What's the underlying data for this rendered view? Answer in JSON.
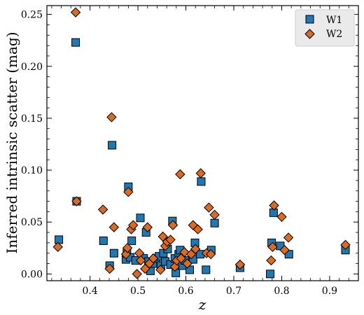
{
  "chart_data": {
    "type": "scatter",
    "xlabel": "z",
    "ylabel": "Inferred intrinsic scatter (mag)",
    "xlim": [
      0.31,
      0.96
    ],
    "ylim": [
      -0.0065,
      0.2585
    ],
    "x_ticks": [
      0.4,
      0.5,
      0.6,
      0.7,
      0.8,
      0.9
    ],
    "x_tick_labels": [
      "0.4",
      "0.5",
      "0.6",
      "0.7",
      "0.8",
      "0.9"
    ],
    "y_ticks": [
      0.0,
      0.05,
      0.1,
      0.15,
      0.2,
      0.25
    ],
    "y_tick_labels": [
      "0.00",
      "0.05",
      "0.10",
      "0.15",
      "0.20",
      "0.25"
    ],
    "grid": false,
    "legend_position": "top-right",
    "series": [
      {
        "name": "W1",
        "marker": "square",
        "color": "#1f77b4",
        "points": [
          [
            0.335,
            0.033
          ],
          [
            0.37,
            0.223
          ],
          [
            0.372,
            0.07
          ],
          [
            0.428,
            0.032
          ],
          [
            0.441,
            0.008
          ],
          [
            0.446,
            0.124
          ],
          [
            0.45,
            0.02
          ],
          [
            0.475,
            0.014
          ],
          [
            0.477,
            0.02
          ],
          [
            0.48,
            0.084
          ],
          [
            0.484,
            0.016
          ],
          [
            0.487,
            0.032
          ],
          [
            0.495,
            0.013
          ],
          [
            0.505,
            0.054
          ],
          [
            0.512,
            0.015
          ],
          [
            0.517,
            0.04
          ],
          [
            0.522,
            0.012
          ],
          [
            0.526,
            0.003
          ],
          [
            0.531,
            0.01
          ],
          [
            0.538,
            0.015
          ],
          [
            0.544,
            0.017
          ],
          [
            0.548,
            0.008
          ],
          [
            0.553,
            0.02
          ],
          [
            0.557,
            0.012
          ],
          [
            0.562,
            0.024
          ],
          [
            0.568,
            0.009
          ],
          [
            0.572,
            0.051
          ],
          [
            0.577,
            0.015
          ],
          [
            0.579,
            0.001
          ],
          [
            0.585,
            0.019
          ],
          [
            0.588,
            0.023
          ],
          [
            0.593,
            0.008
          ],
          [
            0.598,
            0.013
          ],
          [
            0.608,
            0.004
          ],
          [
            0.615,
            0.014
          ],
          [
            0.619,
            0.03
          ],
          [
            0.63,
            0.019
          ],
          [
            0.632,
            0.089
          ],
          [
            0.642,
            0.004
          ],
          [
            0.653,
            0.023
          ],
          [
            0.66,
            0.049
          ],
          [
            0.713,
            0.006
          ],
          [
            0.776,
            0.0
          ],
          [
            0.779,
            0.03
          ],
          [
            0.783,
            0.059
          ],
          [
            0.797,
            0.027
          ],
          [
            0.815,
            0.019
          ],
          [
            0.933,
            0.023
          ]
        ]
      },
      {
        "name": "W2",
        "marker": "diamond",
        "color": "#dd6a20",
        "points": [
          [
            0.333,
            0.026
          ],
          [
            0.37,
            0.252
          ],
          [
            0.372,
            0.07
          ],
          [
            0.427,
            0.062
          ],
          [
            0.441,
            0.005
          ],
          [
            0.445,
            0.151
          ],
          [
            0.45,
            0.045
          ],
          [
            0.475,
            0.019
          ],
          [
            0.478,
            0.025
          ],
          [
            0.48,
            0.079
          ],
          [
            0.486,
            0.043
          ],
          [
            0.49,
            0.047
          ],
          [
            0.498,
            0.0
          ],
          [
            0.503,
            0.02
          ],
          [
            0.506,
            0.013
          ],
          [
            0.515,
            0.005
          ],
          [
            0.52,
            0.045
          ],
          [
            0.524,
            0.01
          ],
          [
            0.532,
            0.015
          ],
          [
            0.547,
            0.004
          ],
          [
            0.552,
            0.036
          ],
          [
            0.557,
            0.027
          ],
          [
            0.561,
            0.031
          ],
          [
            0.568,
            0.033
          ],
          [
            0.573,
            0.047
          ],
          [
            0.577,
            0.007
          ],
          [
            0.581,
            0.013
          ],
          [
            0.588,
            0.096
          ],
          [
            0.59,
            0.015
          ],
          [
            0.597,
            0.021
          ],
          [
            0.603,
            0.01
          ],
          [
            0.611,
            0.019
          ],
          [
            0.615,
            0.047
          ],
          [
            0.62,
            0.024
          ],
          [
            0.625,
            0.043
          ],
          [
            0.631,
            0.097
          ],
          [
            0.643,
            0.02
          ],
          [
            0.648,
            0.064
          ],
          [
            0.652,
            0.019
          ],
          [
            0.66,
            0.057
          ],
          [
            0.713,
            0.009
          ],
          [
            0.778,
            0.013
          ],
          [
            0.781,
            0.026
          ],
          [
            0.784,
            0.066
          ],
          [
            0.8,
            0.055
          ],
          [
            0.806,
            0.023
          ],
          [
            0.814,
            0.035
          ],
          [
            0.933,
            0.028
          ]
        ]
      }
    ]
  }
}
